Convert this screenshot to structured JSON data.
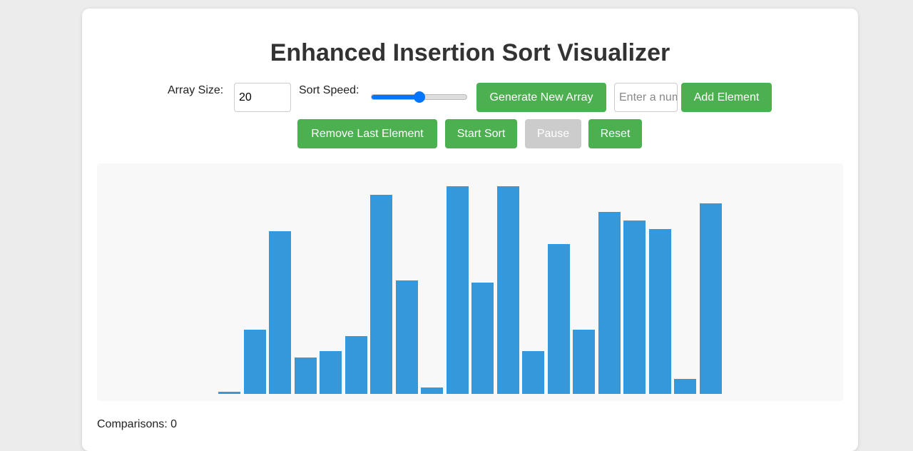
{
  "header": {
    "title": "Enhanced Insertion Sort Visualizer"
  },
  "controls": {
    "array_size_label": "Array Size:",
    "array_size_value": "20",
    "speed_label": "Sort Speed:",
    "generate_button": "Generate New Array",
    "element_placeholder": "Enter a number",
    "add_button": "Add Element",
    "remove_button": "Remove Last Element",
    "start_button": "Start Sort",
    "pause_button": "Pause",
    "reset_button": "Reset"
  },
  "bars": {
    "color": "#3498db",
    "values": [
      1,
      30,
      76,
      17,
      20,
      27,
      93,
      53,
      3,
      97,
      52,
      97,
      20,
      70,
      30,
      85,
      81,
      77,
      7,
      89
    ]
  },
  "stats": {
    "comparisons": "Comparisons: 0"
  }
}
